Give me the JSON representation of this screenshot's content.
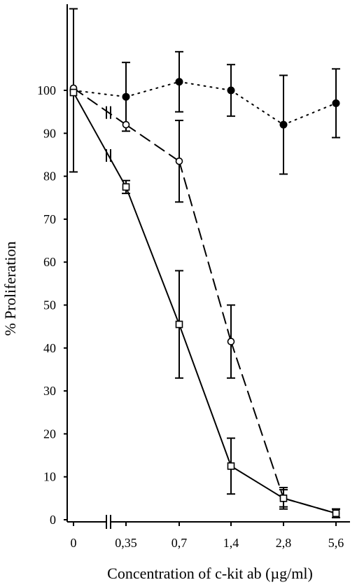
{
  "chart_data": {
    "type": "line",
    "title": "",
    "xlabel": "Concentration of c-kit ab (µg/ml)",
    "ylabel": "% Proliferation",
    "x_categories": [
      "0",
      "0,35",
      "0,7",
      "1,4",
      "2,8",
      "5,6"
    ],
    "x_axis_break": "double slash between 0 and 0,35",
    "y_ticks": [
      0,
      10,
      20,
      30,
      40,
      50,
      60,
      70,
      80,
      90,
      100
    ],
    "ylim": [
      0,
      118
    ],
    "grid": false,
    "legend": "none",
    "series": [
      {
        "marker": "filled-circle",
        "line_style": "dotted",
        "values": [
          100,
          98.5,
          102,
          100,
          92,
          97
        ],
        "error": [
          19,
          8,
          7,
          6,
          11.5,
          8
        ]
      },
      {
        "marker": "open-circle",
        "line_style": "dashed",
        "values": [
          100.5,
          92,
          83.5,
          41.5,
          5,
          1.5
        ],
        "error": [
          0,
          0,
          9.5,
          8.5,
          2.5,
          1
        ]
      },
      {
        "marker": "open-square",
        "line_style": "solid",
        "values": [
          99.5,
          77.5,
          45.5,
          12.5,
          5,
          1.5
        ],
        "error": [
          0,
          1.5,
          12.5,
          6.5,
          2,
          1
        ]
      }
    ]
  }
}
